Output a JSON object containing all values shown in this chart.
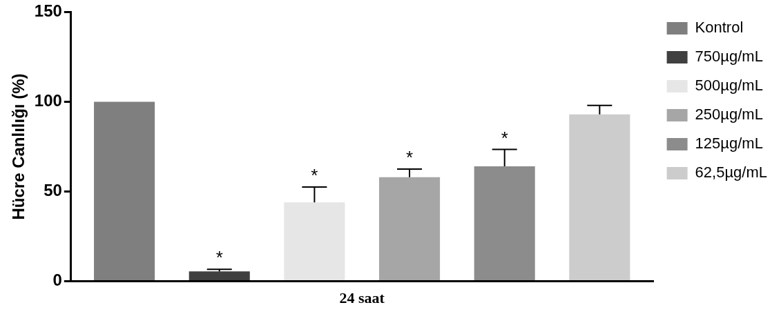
{
  "chart_data": {
    "type": "bar",
    "ylabel": "Hücre Canlılığı (%)",
    "categories": [
      "24 saat"
    ],
    "series": [
      {
        "name": "Kontrol",
        "color": "#7f7f7f",
        "values": [
          100
        ]
      },
      {
        "name": "750µg/mL",
        "color": "#404040",
        "values": [
          5.5
        ],
        "errors": [
          1.2
        ],
        "value_labels": [
          "*"
        ]
      },
      {
        "name": "500µg/mL",
        "color": "#e6e6e6",
        "values": [
          44
        ],
        "errors": [
          8.5
        ],
        "value_labels": [
          "*"
        ]
      },
      {
        "name": "250µg/mL",
        "color": "#a6a6a6",
        "values": [
          58
        ],
        "errors": [
          4.5
        ],
        "value_labels": [
          "*"
        ]
      },
      {
        "name": "125µg/mL",
        "color": "#8c8c8c",
        "values": [
          64
        ],
        "errors": [
          9.5
        ],
        "value_labels": [
          "*"
        ]
      },
      {
        "name": "62,5µg/mL",
        "color": "#cccccc",
        "values": [
          93
        ],
        "errors": [
          5
        ]
      }
    ],
    "ylim": [
      0,
      150
    ],
    "yticks": [
      0,
      50,
      100,
      150
    ],
    "grid": false,
    "legend": "right"
  }
}
